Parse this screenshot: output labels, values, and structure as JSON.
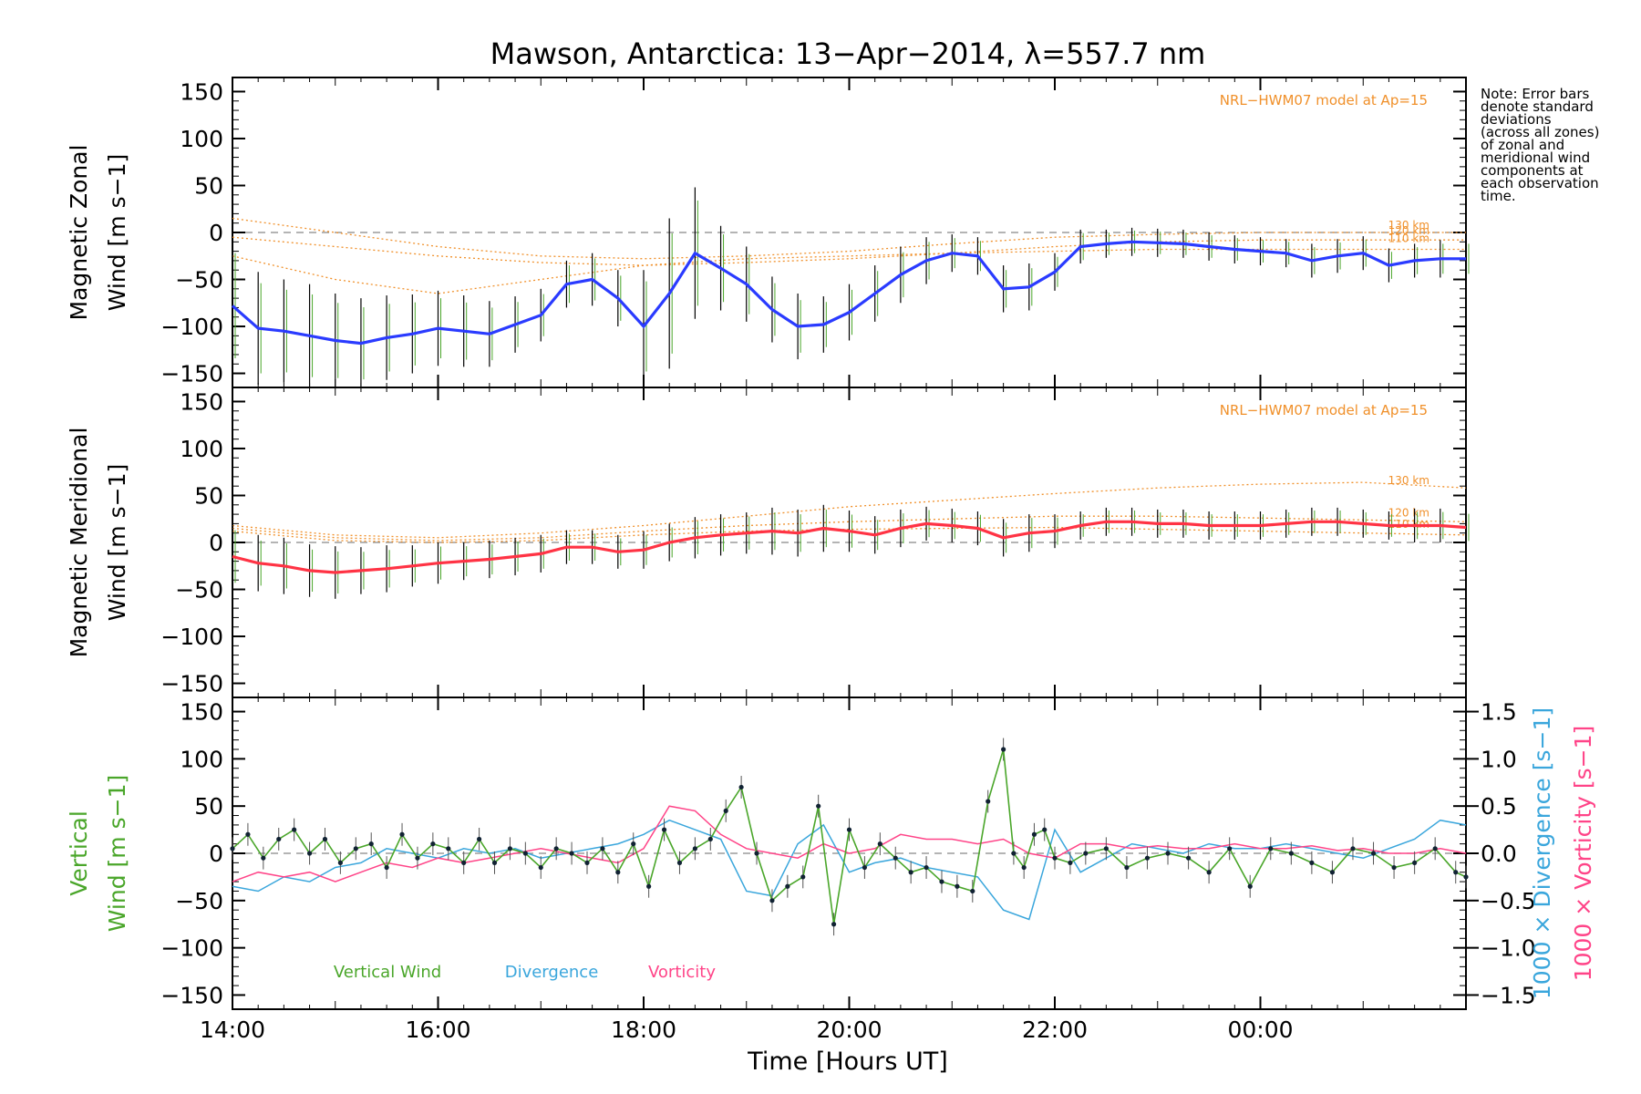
{
  "figure": {
    "title": "Mawson, Antarctica: 13−Apr−2014, λ=557.7 nm",
    "note_lines": [
      "Note: Error bars",
      "denote standard",
      "deviations",
      "(across all zones)",
      "of zonal and",
      "meridional wind",
      "components at",
      "each observation",
      "time."
    ],
    "x_axis_label": "Time [Hours UT]",
    "x_tick_labels": [
      "14:00",
      "16:00",
      "18:00",
      "20:00",
      "22:00",
      "00:00"
    ]
  },
  "colors": {
    "zonal_line": "#2a3bff",
    "meridional_line": "#ff3344",
    "model": "#f0902a",
    "vertical": "#4aa62a",
    "divergence": "#3aa6dc",
    "vorticity": "#ff4488",
    "errorbar": "#000000"
  },
  "chart_data": [
    {
      "type": "line",
      "panel": "zonal",
      "ylabel": [
        "Magnetic Zonal",
        "Wind [m s−1]"
      ],
      "ylim": [
        -165,
        165
      ],
      "y_ticks": [
        -150,
        -100,
        -50,
        0,
        50,
        100,
        150
      ],
      "xlim": [
        14.0,
        26.0
      ],
      "model_label": "NRL−HWM07 model at Ap=15",
      "model_altitudes": [
        "130 km",
        "120 km",
        "110 km"
      ],
      "model_curves": [
        {
          "name": "130 km",
          "x": [
            14,
            15,
            16,
            17,
            18,
            19,
            20,
            21,
            22,
            23,
            24,
            25,
            26
          ],
          "y": [
            15,
            0,
            -15,
            -25,
            -28,
            -25,
            -20,
            -12,
            -5,
            -2,
            0,
            0,
            0
          ]
        },
        {
          "name": "120 km",
          "x": [
            14,
            15,
            16,
            17,
            18,
            19,
            20,
            21,
            22,
            23,
            24,
            25,
            26
          ],
          "y": [
            -5,
            -15,
            -25,
            -32,
            -35,
            -32,
            -28,
            -22,
            -15,
            -10,
            -8,
            -8,
            -8
          ]
        },
        {
          "name": "110 km",
          "x": [
            14,
            15,
            16,
            17,
            18,
            19,
            20,
            21,
            22,
            23,
            24,
            25,
            26
          ],
          "y": [
            -25,
            -50,
            -65,
            -50,
            -35,
            -28,
            -25,
            -22,
            -20,
            -18,
            -18,
            -18,
            -18
          ]
        }
      ],
      "series": [
        {
          "name": "Zonal wind",
          "x": [
            14.0,
            14.25,
            14.5,
            14.75,
            15.0,
            15.25,
            15.5,
            15.75,
            16.0,
            16.25,
            16.5,
            16.75,
            17.0,
            17.25,
            17.5,
            17.75,
            18.0,
            18.25,
            18.5,
            18.75,
            19.0,
            19.25,
            19.5,
            19.75,
            20.0,
            20.25,
            20.5,
            20.75,
            21.0,
            21.25,
            21.5,
            21.75,
            22.0,
            22.25,
            22.5,
            22.75,
            23.0,
            23.25,
            23.5,
            23.75,
            24.0,
            24.25,
            24.5,
            24.75,
            25.0,
            25.25,
            25.5,
            25.75,
            26.0
          ],
          "y": [
            -78,
            -102,
            -105,
            -110,
            -115,
            -118,
            -112,
            -108,
            -102,
            -105,
            -108,
            -98,
            -88,
            -55,
            -50,
            -70,
            -100,
            -65,
            -22,
            -38,
            -55,
            -82,
            -100,
            -98,
            -85,
            -65,
            -45,
            -30,
            -22,
            -25,
            -60,
            -58,
            -42,
            -15,
            -12,
            -10,
            -11,
            -12,
            -15,
            -18,
            -20,
            -22,
            -30,
            -25,
            -22,
            -35,
            -30,
            -28,
            -28
          ],
          "err": [
            70,
            60,
            55,
            55,
            50,
            48,
            45,
            42,
            40,
            38,
            35,
            30,
            28,
            25,
            28,
            30,
            60,
            80,
            70,
            45,
            40,
            35,
            35,
            30,
            30,
            30,
            30,
            25,
            20,
            20,
            25,
            25,
            20,
            18,
            15,
            15,
            15,
            15,
            15,
            15,
            15,
            15,
            18,
            18,
            18,
            18,
            18,
            20,
            20
          ]
        }
      ]
    },
    {
      "type": "line",
      "panel": "meridional",
      "ylabel": [
        "Magnetic Meridional",
        "Wind [m s−1]"
      ],
      "ylim": [
        -165,
        165
      ],
      "y_ticks": [
        -150,
        -100,
        -50,
        0,
        50,
        100,
        150
      ],
      "xlim": [
        14.0,
        26.0
      ],
      "model_label": "NRL−HWM07 model at Ap=15",
      "model_altitudes": [
        "130 km",
        "120 km",
        "110 km"
      ],
      "model_curves": [
        {
          "name": "130 km",
          "x": [
            14,
            15,
            16,
            17,
            18,
            19,
            20,
            21,
            22,
            23,
            24,
            25,
            26
          ],
          "y": [
            18,
            8,
            5,
            10,
            18,
            28,
            38,
            45,
            52,
            58,
            62,
            64,
            58
          ]
        },
        {
          "name": "120 km",
          "x": [
            14,
            15,
            16,
            17,
            18,
            19,
            20,
            21,
            22,
            23,
            24,
            25,
            26
          ],
          "y": [
            15,
            5,
            2,
            5,
            12,
            18,
            22,
            25,
            28,
            28,
            26,
            24,
            22
          ]
        },
        {
          "name": "110 km",
          "x": [
            14,
            15,
            16,
            17,
            18,
            19,
            20,
            21,
            22,
            23,
            24,
            25,
            26
          ],
          "y": [
            12,
            2,
            0,
            2,
            8,
            12,
            14,
            15,
            16,
            14,
            12,
            10,
            8
          ]
        }
      ],
      "series": [
        {
          "name": "Meridional wind",
          "x": [
            14.0,
            14.25,
            14.5,
            14.75,
            15.0,
            15.25,
            15.5,
            15.75,
            16.0,
            16.25,
            16.5,
            16.75,
            17.0,
            17.25,
            17.5,
            17.75,
            18.0,
            18.25,
            18.5,
            18.75,
            19.0,
            19.25,
            19.5,
            19.75,
            20.0,
            20.25,
            20.5,
            20.75,
            21.0,
            21.25,
            21.5,
            21.75,
            22.0,
            22.25,
            22.5,
            22.75,
            23.0,
            23.25,
            23.5,
            23.75,
            24.0,
            24.25,
            24.5,
            24.75,
            25.0,
            25.25,
            25.5,
            25.75,
            26.0
          ],
          "y": [
            -15,
            -22,
            -25,
            -30,
            -32,
            -30,
            -28,
            -25,
            -22,
            -20,
            -18,
            -15,
            -12,
            -5,
            -5,
            -10,
            -8,
            0,
            5,
            8,
            10,
            12,
            10,
            15,
            12,
            8,
            15,
            20,
            18,
            15,
            5,
            10,
            12,
            18,
            22,
            22,
            20,
            20,
            18,
            18,
            18,
            20,
            22,
            22,
            20,
            18,
            18,
            18,
            16
          ],
          "err": [
            35,
            30,
            30,
            28,
            28,
            25,
            25,
            22,
            22,
            20,
            20,
            20,
            20,
            18,
            18,
            18,
            20,
            20,
            22,
            22,
            22,
            25,
            25,
            25,
            22,
            20,
            20,
            18,
            18,
            18,
            20,
            20,
            18,
            15,
            15,
            15,
            15,
            15,
            15,
            15,
            15,
            15,
            15,
            15,
            15,
            15,
            18,
            18,
            18
          ]
        }
      ]
    },
    {
      "type": "line",
      "panel": "vertical",
      "ylabel": [
        "Vertical",
        "Wind [m s−1]"
      ],
      "ylim": [
        -165,
        165
      ],
      "y_ticks": [
        -150,
        -100,
        -50,
        0,
        50,
        100,
        150
      ],
      "y2_label_divergence": "1000 × Divergence [s−1]",
      "y2_label_vorticity": "1000 × Vorticity [s−1]",
      "y2_lim": [
        -1.65,
        1.65
      ],
      "y2_ticks": [
        -1.5,
        -1.0,
        -0.5,
        0.0,
        0.5,
        1.0,
        1.5
      ],
      "y2_tick_labels": [
        "−1.5",
        "−1.0",
        "−0.5",
        "0.0",
        "0.5",
        "1.0",
        "1.5"
      ],
      "xlim": [
        14.0,
        26.0
      ],
      "legend": [
        "Vertical Wind",
        "Divergence",
        "Vorticity"
      ],
      "series": [
        {
          "name": "Vertical Wind",
          "axis": "left",
          "x": [
            14.0,
            14.15,
            14.3,
            14.45,
            14.6,
            14.75,
            14.9,
            15.05,
            15.2,
            15.35,
            15.5,
            15.65,
            15.8,
            15.95,
            16.1,
            16.25,
            16.4,
            16.55,
            16.7,
            16.85,
            17.0,
            17.15,
            17.3,
            17.45,
            17.6,
            17.75,
            17.9,
            18.05,
            18.2,
            18.35,
            18.5,
            18.65,
            18.8,
            18.95,
            19.1,
            19.25,
            19.4,
            19.55,
            19.7,
            19.85,
            20.0,
            20.15,
            20.3,
            20.45,
            20.6,
            20.75,
            20.9,
            21.05,
            21.2,
            21.35,
            21.5,
            21.6,
            21.7,
            21.8,
            21.9,
            22.0,
            22.15,
            22.3,
            22.5,
            22.7,
            22.9,
            23.1,
            23.3,
            23.5,
            23.7,
            23.9,
            24.1,
            24.3,
            24.5,
            24.7,
            24.9,
            25.1,
            25.3,
            25.5,
            25.7,
            25.9,
            26.0
          ],
          "y": [
            5,
            20,
            -5,
            15,
            25,
            0,
            15,
            -10,
            5,
            10,
            -15,
            20,
            -5,
            10,
            5,
            -10,
            15,
            -10,
            5,
            0,
            -15,
            5,
            0,
            -10,
            5,
            -20,
            10,
            -35,
            25,
            -10,
            5,
            15,
            45,
            70,
            0,
            -50,
            -35,
            -25,
            50,
            -75,
            25,
            -15,
            10,
            -5,
            -20,
            -15,
            -30,
            -35,
            -40,
            55,
            110,
            0,
            -15,
            20,
            25,
            -5,
            -10,
            0,
            5,
            -15,
            -5,
            0,
            -5,
            -20,
            5,
            -35,
            5,
            0,
            -10,
            -20,
            5,
            0,
            -15,
            -10,
            5,
            -20,
            -25
          ],
          "err": 12
        },
        {
          "name": "Divergence",
          "axis": "right",
          "x": [
            14.0,
            14.25,
            14.5,
            14.75,
            15.0,
            15.25,
            15.5,
            15.75,
            16.0,
            16.25,
            16.5,
            16.75,
            17.0,
            17.25,
            17.5,
            17.75,
            18.0,
            18.25,
            18.5,
            18.75,
            19.0,
            19.25,
            19.5,
            19.75,
            20.0,
            20.25,
            20.5,
            20.75,
            21.0,
            21.25,
            21.5,
            21.75,
            22.0,
            22.25,
            22.5,
            22.75,
            23.0,
            23.25,
            23.5,
            23.75,
            24.0,
            24.25,
            24.5,
            24.75,
            25.0,
            25.25,
            25.5,
            25.75,
            26.0
          ],
          "y": [
            -0.35,
            -0.4,
            -0.25,
            -0.3,
            -0.15,
            -0.1,
            0.05,
            0.0,
            -0.05,
            0.05,
            0.0,
            0.05,
            -0.05,
            0.0,
            0.05,
            0.1,
            0.2,
            0.35,
            0.25,
            0.15,
            -0.4,
            -0.45,
            0.1,
            0.3,
            -0.2,
            -0.1,
            -0.05,
            -0.15,
            -0.2,
            -0.25,
            -0.6,
            -0.7,
            0.25,
            -0.2,
            -0.05,
            0.1,
            0.05,
            0.0,
            0.1,
            0.05,
            0.05,
            0.1,
            0.05,
            0.0,
            -0.05,
            0.05,
            0.15,
            0.35,
            0.3
          ]
        },
        {
          "name": "Vorticity",
          "axis": "right",
          "x": [
            14.0,
            14.25,
            14.5,
            14.75,
            15.0,
            15.25,
            15.5,
            15.75,
            16.0,
            16.25,
            16.5,
            16.75,
            17.0,
            17.25,
            17.5,
            17.75,
            18.0,
            18.25,
            18.5,
            18.75,
            19.0,
            19.25,
            19.5,
            19.75,
            20.0,
            20.25,
            20.5,
            20.75,
            21.0,
            21.25,
            21.5,
            21.75,
            22.0,
            22.25,
            22.5,
            22.75,
            23.0,
            23.25,
            23.5,
            23.75,
            24.0,
            24.25,
            24.5,
            24.75,
            25.0,
            25.25,
            25.5,
            25.75,
            26.0
          ],
          "y": [
            -0.3,
            -0.2,
            -0.25,
            -0.2,
            -0.3,
            -0.2,
            -0.1,
            -0.15,
            -0.05,
            -0.1,
            -0.05,
            0.0,
            0.05,
            0.0,
            -0.05,
            -0.1,
            0.05,
            0.5,
            0.45,
            0.2,
            0.05,
            0.0,
            -0.05,
            0.1,
            0.0,
            0.05,
            0.2,
            0.15,
            0.15,
            0.1,
            0.15,
            0.0,
            -0.05,
            0.1,
            0.1,
            0.05,
            0.08,
            0.05,
            0.05,
            0.1,
            0.05,
            0.05,
            0.08,
            0.03,
            0.05,
            0.0,
            0.0,
            0.05,
            0.0
          ]
        }
      ]
    }
  ]
}
